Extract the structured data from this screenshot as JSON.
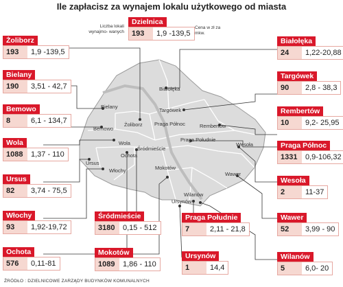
{
  "title": "Ile zapłacisz za wynajem lokalu użytkowego od miasta",
  "legend": {
    "header": "Dzielnica",
    "count_value": "193",
    "range_value": "1,9 -139,5",
    "count_label": "Liczba lokali wynajmo- wanych",
    "price_label": "Cena w zł za mkw."
  },
  "chart_data": {
    "type": "table",
    "title": "Ile zapłacisz za wynajem lokalu użytkowego od miasta",
    "columns": [
      "Dzielnica",
      "Liczba lokali wynajmowanych",
      "Cena w zł za mkw."
    ],
    "rows": [
      {
        "district": "Żoliborz",
        "count": 193,
        "price_range": "1,9 -139,5"
      },
      {
        "district": "Bielany",
        "count": 190,
        "price_range": "3,51 - 42,7"
      },
      {
        "district": "Bemowo",
        "count": 8,
        "price_range": "6,1 - 134,7"
      },
      {
        "district": "Wola",
        "count": 1088,
        "price_range": "1,37 - 110"
      },
      {
        "district": "Ursus",
        "count": 82,
        "price_range": "3,74 - 75,5"
      },
      {
        "district": "Włochy",
        "count": 93,
        "price_range": "1,92-19,72"
      },
      {
        "district": "Ochota",
        "count": 576,
        "price_range": "0,11-81"
      },
      {
        "district": "Śródmieście",
        "count": 3180,
        "price_range": "0,15 - 512"
      },
      {
        "district": "Mokotów",
        "count": 1089,
        "price_range": "1,86 - 110"
      },
      {
        "district": "Praga Południe",
        "count": 7,
        "price_range": "2,11 - 21,8"
      },
      {
        "district": "Ursynów",
        "count": 1,
        "price_range": "14,4"
      },
      {
        "district": "Białołęka",
        "count": 24,
        "price_range": "1,22-20,88"
      },
      {
        "district": "Targówek",
        "count": 90,
        "price_range": "2,8 - 38,3"
      },
      {
        "district": "Rembertów",
        "count": 10,
        "price_range": "9,2- 25,95"
      },
      {
        "district": "Praga Północ",
        "count": 1331,
        "price_range": "0,9-106,32"
      },
      {
        "district": "Wesoła",
        "count": 2,
        "price_range": "11-37"
      },
      {
        "district": "Wawer",
        "count": 52,
        "price_range": "3,99 - 90"
      },
      {
        "district": "Wilanów",
        "count": 5,
        "price_range": "6,0- 20"
      }
    ]
  },
  "map_labels": [
    "Białołęka",
    "Targówek",
    "Bielany",
    "Żoliborz",
    "Bemowo",
    "Praga Północ",
    "Rembertów",
    "Wola",
    "Śródmieście",
    "Praga Południe",
    "Wesoła",
    "Ursus",
    "Ochota",
    "Włochy",
    "Mokotów",
    "Wawer",
    "Wilanów",
    "Ursynów"
  ],
  "colors": {
    "accent": "#d9182a",
    "map_fill": "#dcdcdc",
    "map_border": "#ffffff",
    "river": "#bcbcbc",
    "leader": "#333333"
  },
  "source": "ŹRÓDŁO : DZIELNICOWE ZARZĄDY BUDYNKÓW KOMUNALNYCH"
}
